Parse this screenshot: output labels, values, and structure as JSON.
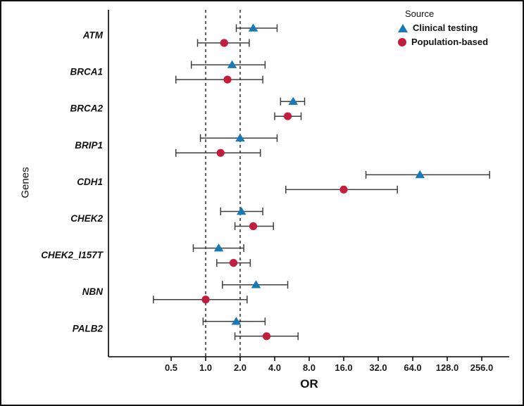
{
  "chart_data": {
    "type": "scatter",
    "variant": "forest-plot",
    "title": "",
    "xlabel": "OR",
    "ylabel": "Genes",
    "x_scale": "log2",
    "xlim": [
      0.3,
      400
    ],
    "grid": false,
    "x_ticks": [
      {
        "value": 0.5,
        "label": "0.5"
      },
      {
        "value": 1,
        "label": "1.0"
      },
      {
        "value": 2,
        "label": "2.0"
      },
      {
        "value": 4,
        "label": "4.0"
      },
      {
        "value": 8,
        "label": "8.0"
      },
      {
        "value": 16,
        "label": "16.0"
      },
      {
        "value": 32,
        "label": "32.0"
      },
      {
        "value": 64,
        "label": "64.0"
      },
      {
        "value": 128,
        "label": "128.0"
      },
      {
        "value": 256,
        "label": "256.0"
      }
    ],
    "reference_lines": [
      1.0,
      2.0
    ],
    "categories": [
      "ATM",
      "BRCA1",
      "BRCA2",
      "BRIP1",
      "CDH1",
      "CHEK2",
      "CHEK2_I157T",
      "NBN",
      "PALB2"
    ],
    "legend": {
      "title": "Source",
      "position": "top-right",
      "entries": [
        {
          "label": "Clinical testing",
          "marker": "triangle",
          "color": "#1779b5"
        },
        {
          "label": "Population-based",
          "marker": "circle",
          "color": "#c01e3c"
        }
      ]
    },
    "series": [
      {
        "name": "Clinical testing",
        "marker": "triangle",
        "color": "#1779b5",
        "points": [
          {
            "gene": "ATM",
            "or": 2.6,
            "ci_low": 1.85,
            "ci_high": 4.2
          },
          {
            "gene": "BRCA1",
            "or": 1.7,
            "ci_low": 0.75,
            "ci_high": 3.3
          },
          {
            "gene": "BRCA2",
            "or": 5.8,
            "ci_low": 4.5,
            "ci_high": 7.3
          },
          {
            "gene": "BRIP1",
            "or": 2.0,
            "ci_low": 0.9,
            "ci_high": 4.2
          },
          {
            "gene": "CDH1",
            "or": 74.0,
            "ci_low": 25.0,
            "ci_high": 300.0
          },
          {
            "gene": "CHEK2",
            "or": 2.05,
            "ci_low": 1.35,
            "ci_high": 3.15
          },
          {
            "gene": "CHEK2_I157T",
            "or": 1.3,
            "ci_low": 0.78,
            "ci_high": 2.15
          },
          {
            "gene": "NBN",
            "or": 2.75,
            "ci_low": 1.4,
            "ci_high": 5.2
          },
          {
            "gene": "PALB2",
            "or": 1.85,
            "ci_low": 0.95,
            "ci_high": 3.3
          }
        ]
      },
      {
        "name": "Population-based",
        "marker": "circle",
        "color": "#c01e3c",
        "points": [
          {
            "gene": "ATM",
            "or": 1.45,
            "ci_low": 0.85,
            "ci_high": 2.4
          },
          {
            "gene": "BRCA1",
            "or": 1.55,
            "ci_low": 0.55,
            "ci_high": 3.15
          },
          {
            "gene": "BRCA2",
            "or": 5.2,
            "ci_low": 4.0,
            "ci_high": 6.8
          },
          {
            "gene": "BRIP1",
            "or": 1.35,
            "ci_low": 0.55,
            "ci_high": 3.0
          },
          {
            "gene": "CDH1",
            "or": 16.0,
            "ci_low": 5.0,
            "ci_high": 47.0
          },
          {
            "gene": "CHEK2",
            "or": 2.6,
            "ci_low": 1.8,
            "ci_high": 3.9
          },
          {
            "gene": "CHEK2_I157T",
            "or": 1.75,
            "ci_low": 1.25,
            "ci_high": 2.45
          },
          {
            "gene": "NBN",
            "or": 1.0,
            "ci_low": 0.35,
            "ci_high": 2.3
          },
          {
            "gene": "PALB2",
            "or": 3.4,
            "ci_low": 1.8,
            "ci_high": 6.4
          }
        ]
      }
    ],
    "error_bar_color": "#3f3f3f",
    "axis_color": "#000000",
    "reference_line_color": "#1a1a1a"
  }
}
